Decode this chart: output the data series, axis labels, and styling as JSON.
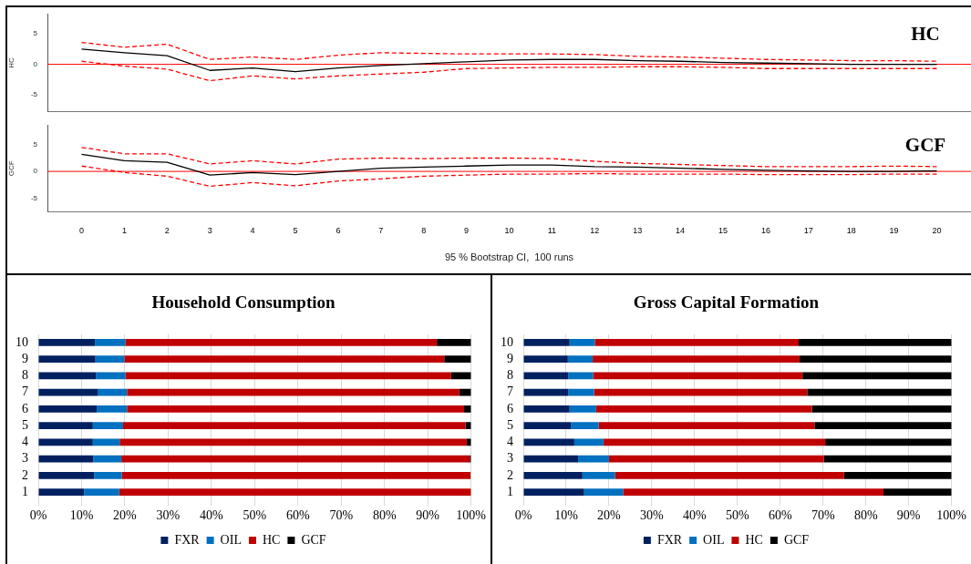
{
  "chart_data": [
    {
      "type": "line",
      "title": "HC",
      "ylabel": "HC",
      "x": [
        0,
        1,
        2,
        3,
        4,
        5,
        6,
        7,
        8,
        9,
        10,
        11,
        12,
        13,
        14,
        15,
        16,
        17,
        18,
        19,
        20
      ],
      "xlim": [
        -0.8,
        20.8
      ],
      "xticks": [
        0,
        1,
        2,
        3,
        4,
        5,
        6,
        7,
        8,
        9,
        10,
        11,
        12,
        13,
        14,
        15,
        16,
        17,
        18,
        19,
        20
      ],
      "ylim": [
        -7.7,
        8.2
      ],
      "yticks": [
        -5,
        0,
        5
      ],
      "tick_labels": "y",
      "grid": false,
      "ref_lines": [
        {
          "axis": "y",
          "value": 0,
          "color": "#ff0000"
        }
      ],
      "series": [
        {
          "color": "#000000",
          "line_style": "solid",
          "values": [
            2.5,
            1.9,
            1.4,
            -1.0,
            -0.6,
            -1.2,
            -0.6,
            -0.2,
            0.1,
            0.4,
            0.7,
            0.8,
            0.8,
            0.6,
            0.5,
            0.3,
            0.2,
            0.1,
            0,
            0,
            0
          ]
        },
        {
          "color": "#ff0000",
          "line_style": "dashed",
          "values": [
            3.6,
            2.8,
            3.3,
            0.8,
            1.2,
            0.8,
            1.5,
            1.9,
            1.8,
            1.7,
            1.7,
            1.7,
            1.6,
            1.3,
            1.2,
            1.0,
            0.8,
            0.7,
            0.6,
            0.6,
            0.5
          ]
        },
        {
          "color": "#ff0000",
          "line_style": "dashed",
          "values": [
            0.5,
            -0.3,
            -0.8,
            -2.7,
            -1.9,
            -2.4,
            -1.9,
            -1.6,
            -1.3,
            -0.7,
            -0.6,
            -0.5,
            -0.5,
            -0.4,
            -0.4,
            -0.5,
            -0.7,
            -0.7,
            -0.7,
            -0.7,
            -0.7
          ]
        }
      ]
    },
    {
      "type": "line",
      "title": "GCF",
      "ylabel": "GCF",
      "xlabel": "95 % Bootstrap CI,  100 runs",
      "x": [
        0,
        1,
        2,
        3,
        4,
        5,
        6,
        7,
        8,
        9,
        10,
        11,
        12,
        13,
        14,
        15,
        16,
        17,
        18,
        19,
        20
      ],
      "xlim": [
        -0.8,
        20.8
      ],
      "xticks": [
        0,
        1,
        2,
        3,
        4,
        5,
        6,
        7,
        8,
        9,
        10,
        11,
        12,
        13,
        14,
        15,
        16,
        17,
        18,
        19,
        20
      ],
      "ylim": [
        -7.5,
        8.6
      ],
      "yticks": [
        -5,
        0,
        5
      ],
      "grid": false,
      "ref_lines": [
        {
          "axis": "y",
          "value": 0,
          "color": "#ff0000"
        }
      ],
      "series": [
        {
          "color": "#000000",
          "line_style": "solid",
          "values": [
            3.2,
            2.0,
            1.7,
            -0.7,
            -0.2,
            -0.6,
            0,
            0.6,
            0.8,
            1.0,
            1.2,
            1.2,
            0.9,
            0.8,
            0.6,
            0.4,
            0.2,
            0.1,
            0,
            0,
            0.1
          ]
        },
        {
          "color": "#ff0000",
          "line_style": "dashed",
          "values": [
            4.5,
            3.3,
            3.3,
            1.4,
            2.0,
            1.4,
            2.3,
            2.5,
            2.4,
            2.5,
            2.5,
            2.4,
            1.9,
            1.5,
            1.3,
            1.1,
            0.9,
            0.9,
            0.9,
            1.0,
            0.9
          ]
        },
        {
          "color": "#ff0000",
          "line_style": "dashed",
          "values": [
            1.0,
            -0.2,
            -0.9,
            -2.8,
            -2.1,
            -2.7,
            -1.8,
            -1.4,
            -0.9,
            -0.7,
            -0.5,
            -0.5,
            -0.4,
            -0.5,
            -0.5,
            -0.5,
            -0.6,
            -0.6,
            -0.6,
            -0.5,
            -0.5
          ]
        }
      ]
    },
    {
      "type": "bar",
      "title": "Household Consumption",
      "orientation": "horizontal",
      "stacked": true,
      "grid": "x",
      "legend": "bottom",
      "categories": [
        "10",
        "9",
        "8",
        "7",
        "6",
        "5",
        "4",
        "3",
        "2",
        "1"
      ],
      "xlim": [
        0,
        100
      ],
      "xticks": [
        {
          "value": 0,
          "label": "0%"
        },
        {
          "value": 10,
          "label": "10%"
        },
        {
          "value": 20,
          "label": "20%"
        },
        {
          "value": 30,
          "label": "30%"
        },
        {
          "value": 40,
          "label": "40%"
        },
        {
          "value": 50,
          "label": "50%"
        },
        {
          "value": 60,
          "label": "60%"
        },
        {
          "value": 70,
          "label": "70%"
        },
        {
          "value": 80,
          "label": "80%"
        },
        {
          "value": 90,
          "label": "90%"
        },
        {
          "value": 100,
          "label": "100%"
        }
      ],
      "series": [
        {
          "name": "FXR",
          "color": "#002060",
          "values": [
            13.1,
            13.2,
            13.3,
            13.7,
            13.5,
            12.6,
            12.6,
            12.7,
            12.9,
            10.6
          ]
        },
        {
          "name": "OIL",
          "color": "#0070c0",
          "values": [
            7.0,
            6.7,
            6.8,
            6.8,
            7.0,
            7.0,
            6.2,
            6.5,
            6.4,
            8.1
          ]
        },
        {
          "name": "HC",
          "color": "#c00000",
          "values": [
            72.0,
            73.9,
            75.3,
            76.8,
            77.9,
            79.1,
            80.2,
            80.5,
            80.6,
            81.3
          ]
        },
        {
          "name": "GCF",
          "color": "#000000",
          "values": [
            7.9,
            6.2,
            4.6,
            2.7,
            1.6,
            1.3,
            1.0,
            0.3,
            null,
            0
          ]
        }
      ]
    },
    {
      "type": "bar",
      "title": "Gross Capital Formation",
      "orientation": "horizontal",
      "stacked": true,
      "grid": "x",
      "legend": "bottom",
      "categories": [
        "10",
        "9",
        "8",
        "7",
        "6",
        "5",
        "4",
        "3",
        "2",
        "1"
      ],
      "xlim": [
        0,
        100
      ],
      "xticks": [
        {
          "value": 0,
          "label": "0%"
        },
        {
          "value": 10,
          "label": "10%"
        },
        {
          "value": 20,
          "label": "20%"
        },
        {
          "value": 30,
          "label": "30%"
        },
        {
          "value": 40,
          "label": "40%"
        },
        {
          "value": 50,
          "label": "50%"
        },
        {
          "value": 60,
          "label": "60%"
        },
        {
          "value": 70,
          "label": "70%"
        },
        {
          "value": 80,
          "label": "80%"
        },
        {
          "value": 90,
          "label": "90%"
        },
        {
          "value": 100,
          "label": "100%"
        }
      ],
      "series": [
        {
          "name": "FXR",
          "color": "#002060",
          "values": [
            10.8,
            10.4,
            10.5,
            10.5,
            10.8,
            11.1,
            11.9,
            12.8,
            13.8,
            14.2
          ]
        },
        {
          "name": "OIL",
          "color": "#0070c0",
          "values": [
            5.9,
            5.8,
            5.8,
            6.0,
            6.2,
            6.5,
            6.8,
            7.2,
            7.6,
            9.1
          ]
        },
        {
          "name": "HC",
          "color": "#c00000",
          "values": [
            47.6,
            48.3,
            48.9,
            49.8,
            50.4,
            50.4,
            51.8,
            50.2,
            53.5,
            60.8
          ]
        },
        {
          "name": "GCF",
          "color": "#000000",
          "values": [
            35.7,
            35.5,
            34.8,
            33.7,
            32.6,
            32.0,
            29.5,
            29.8,
            25.1,
            15.9
          ]
        }
      ]
    }
  ]
}
